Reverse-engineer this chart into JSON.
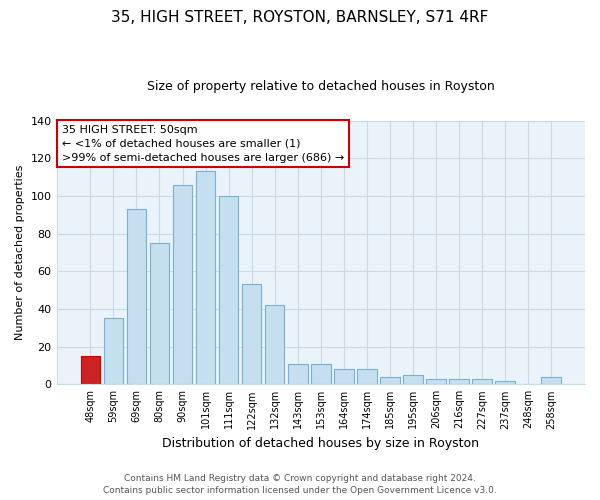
{
  "title": "35, HIGH STREET, ROYSTON, BARNSLEY, S71 4RF",
  "subtitle": "Size of property relative to detached houses in Royston",
  "xlabel": "Distribution of detached houses by size in Royston",
  "ylabel": "Number of detached properties",
  "footnote1": "Contains HM Land Registry data © Crown copyright and database right 2024.",
  "footnote2": "Contains public sector information licensed under the Open Government Licence v3.0.",
  "bar_labels": [
    "48sqm",
    "59sqm",
    "69sqm",
    "80sqm",
    "90sqm",
    "101sqm",
    "111sqm",
    "122sqm",
    "132sqm",
    "143sqm",
    "153sqm",
    "164sqm",
    "174sqm",
    "185sqm",
    "195sqm",
    "206sqm",
    "216sqm",
    "227sqm",
    "237sqm",
    "248sqm",
    "258sqm"
  ],
  "bar_values": [
    15,
    35,
    93,
    75,
    106,
    113,
    100,
    53,
    42,
    11,
    11,
    8,
    8,
    4,
    5,
    3,
    3,
    3,
    2,
    0,
    4
  ],
  "highlight_bar_index": 0,
  "bar_color": "#c5dff0",
  "highlight_color": "#cc2222",
  "bar_edge_color": "#7ab0cc",
  "highlight_edge_color": "#cc0000",
  "ylim": [
    0,
    140
  ],
  "yticks": [
    0,
    20,
    40,
    60,
    80,
    100,
    120,
    140
  ],
  "annotation_line1": "35 HIGH STREET: 50sqm",
  "annotation_line2": "← <1% of detached houses are smaller (1)",
  "annotation_line3": ">99% of semi-detached houses are larger (686) →",
  "annotation_box_color": "#ffffff",
  "annotation_box_edgecolor": "#cc0000",
  "background_color": "#ffffff",
  "plot_bg_color": "#eaf3fa",
  "grid_color": "#c8dce8"
}
